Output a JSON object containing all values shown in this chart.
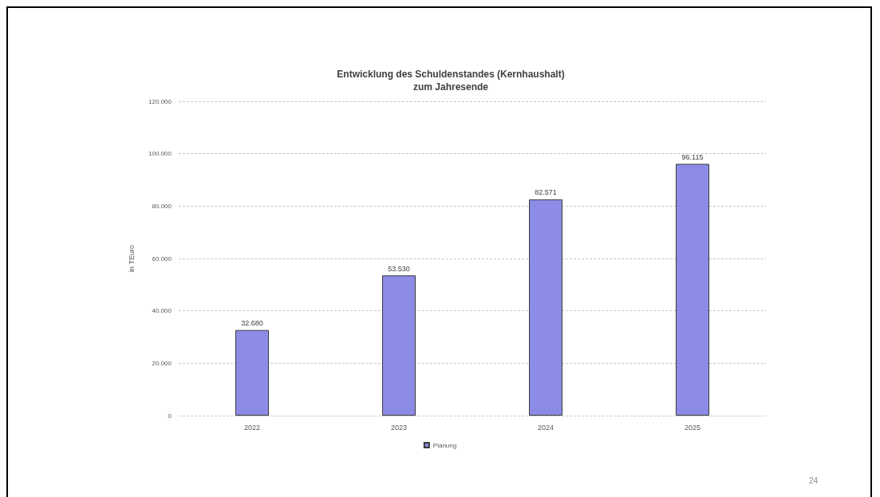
{
  "chart_data": {
    "type": "bar",
    "title": "Entwicklung des Schuldenstandes (Kernhaushalt)\nzum Jahresende",
    "ylabel": "in TEuro",
    "categories": [
      "2022",
      "2023",
      "2024",
      "2025"
    ],
    "series": [
      {
        "name": "Planung",
        "color": "#8c8ce6",
        "values": [
          32680,
          53530,
          82571,
          96115
        ],
        "value_labels": [
          "32.680",
          "53.530",
          "82.571",
          "96.115"
        ]
      }
    ],
    "ylim": [
      0,
      120000
    ],
    "yticks": [
      0,
      {
        "value": 20000,
        "label": "20.000"
      },
      {
        "value": 40000,
        "label": "40.000"
      },
      {
        "value": 60000,
        "label": "60.000"
      },
      {
        "value": 80000,
        "label": "80.000"
      },
      {
        "value": 100000,
        "label": "100.000"
      },
      {
        "value": 120000,
        "label": "120.000"
      }
    ],
    "grid": "y",
    "legend": "bottom",
    "annotations": [
      "24"
    ]
  }
}
